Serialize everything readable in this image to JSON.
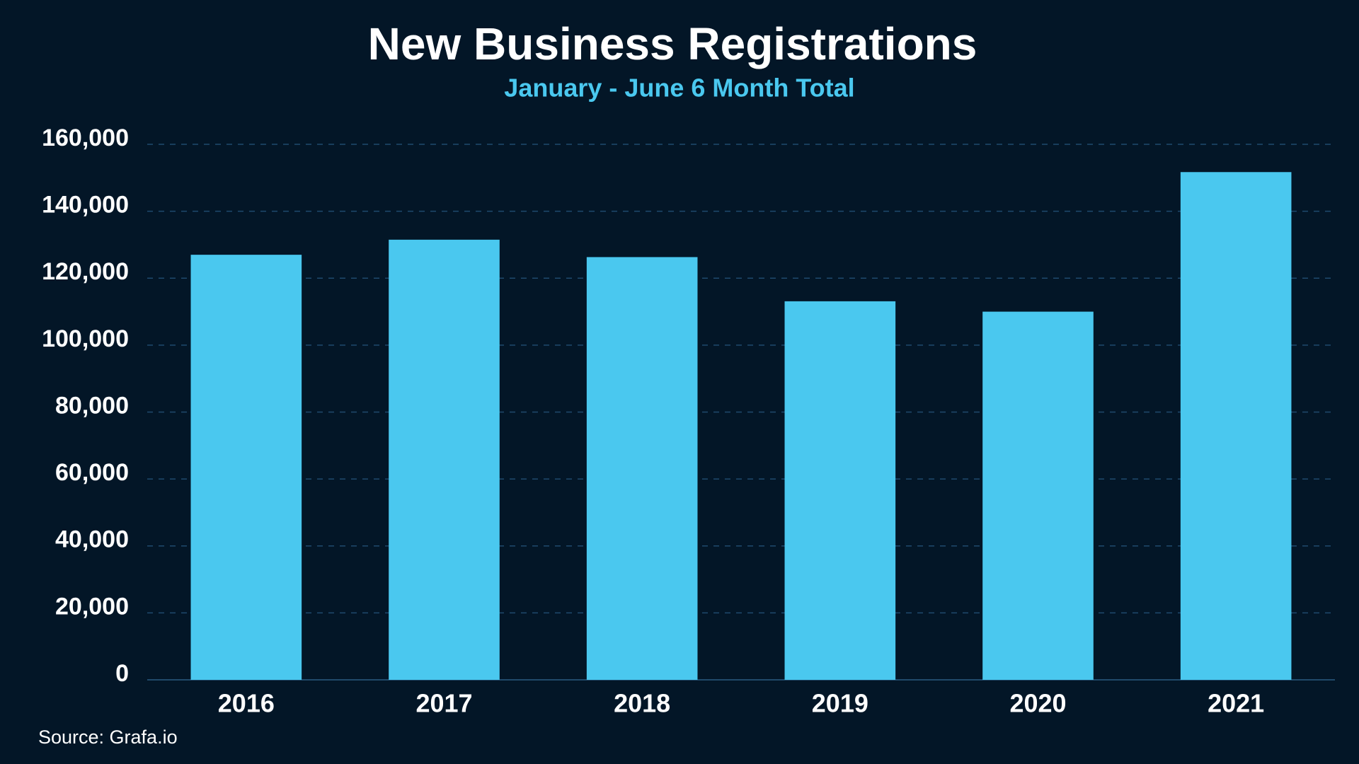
{
  "chart_data": {
    "type": "bar",
    "title": "New Business Registrations",
    "subtitle": "January - June 6 Month Total",
    "source": "Source: Grafa.io",
    "categories": [
      "2016",
      "2017",
      "2018",
      "2019",
      "2020",
      "2021"
    ],
    "values": [
      127000,
      131500,
      126300,
      113100,
      110000,
      151700
    ],
    "color": "#4ac8ef",
    "ylim": [
      0,
      160000
    ],
    "yticks": [
      0,
      {
        "value": 20000,
        "label": "20,000"
      },
      {
        "value": 40000,
        "label": "40,000"
      },
      {
        "value": 60000,
        "label": "60,000"
      },
      {
        "value": 80000,
        "label": "80,000"
      },
      {
        "value": 100000,
        "label": "100,000"
      },
      {
        "value": 120000,
        "label": "120,000"
      },
      {
        "value": 140000,
        "label": "140,000"
      },
      {
        "value": 160000,
        "label": "160,000"
      }
    ],
    "grid": true
  }
}
